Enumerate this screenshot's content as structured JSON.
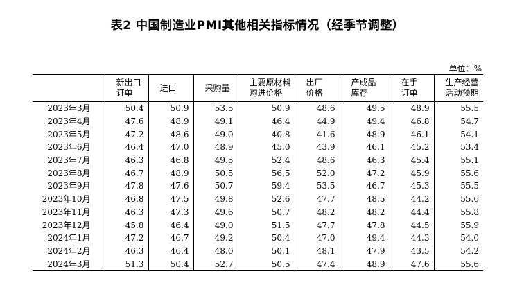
{
  "title": "表2 中国制造业PMI其他相关指标情况（经季节调整）",
  "unit": "单位：%",
  "table": {
    "headers": [
      [
        "",
        ""
      ],
      [
        "新出口",
        "订单"
      ],
      [
        "进口",
        ""
      ],
      [
        "采购量",
        ""
      ],
      [
        "主要原材料",
        "购进价格"
      ],
      [
        "出厂",
        "价格"
      ],
      [
        "产成品",
        "库存"
      ],
      [
        "在手",
        "订单"
      ],
      [
        "生产经营",
        "活动预期"
      ]
    ],
    "rows": [
      [
        "2023年3月",
        "50.4",
        "50.9",
        "53.5",
        "50.9",
        "48.6",
        "49.5",
        "48.9",
        "55.5"
      ],
      [
        "2023年4月",
        "47.6",
        "48.9",
        "49.1",
        "46.4",
        "44.9",
        "49.4",
        "46.8",
        "54.7"
      ],
      [
        "2023年5月",
        "47.2",
        "48.6",
        "49.0",
        "40.8",
        "41.6",
        "48.9",
        "46.1",
        "54.1"
      ],
      [
        "2023年6月",
        "46.4",
        "47.0",
        "48.9",
        "45.0",
        "43.9",
        "46.1",
        "45.2",
        "53.4"
      ],
      [
        "2023年7月",
        "46.3",
        "46.8",
        "49.5",
        "52.4",
        "48.6",
        "46.3",
        "45.4",
        "55.1"
      ],
      [
        "2023年8月",
        "46.7",
        "48.9",
        "50.5",
        "56.5",
        "52.0",
        "47.2",
        "45.9",
        "55.6"
      ],
      [
        "2023年9月",
        "47.8",
        "47.6",
        "50.7",
        "59.4",
        "53.5",
        "46.7",
        "45.3",
        "55.5"
      ],
      [
        "2023年10月",
        "46.8",
        "47.5",
        "49.8",
        "52.6",
        "47.7",
        "48.5",
        "44.2",
        "55.6"
      ],
      [
        "2023年11月",
        "46.3",
        "47.3",
        "49.6",
        "50.7",
        "48.2",
        "48.2",
        "44.4",
        "55.8"
      ],
      [
        "2023年12月",
        "45.8",
        "46.4",
        "49.0",
        "51.5",
        "47.7",
        "47.8",
        "44.5",
        "55.9"
      ],
      [
        "2024年1月",
        "47.2",
        "46.7",
        "49.2",
        "50.4",
        "47.0",
        "49.4",
        "44.3",
        "54.0"
      ],
      [
        "2024年2月",
        "46.3",
        "46.4",
        "48.0",
        "50.1",
        "48.1",
        "47.9",
        "43.5",
        "54.2"
      ],
      [
        "2024年3月",
        "51.3",
        "50.4",
        "52.7",
        "50.5",
        "47.4",
        "48.9",
        "47.6",
        "55.6"
      ]
    ]
  }
}
